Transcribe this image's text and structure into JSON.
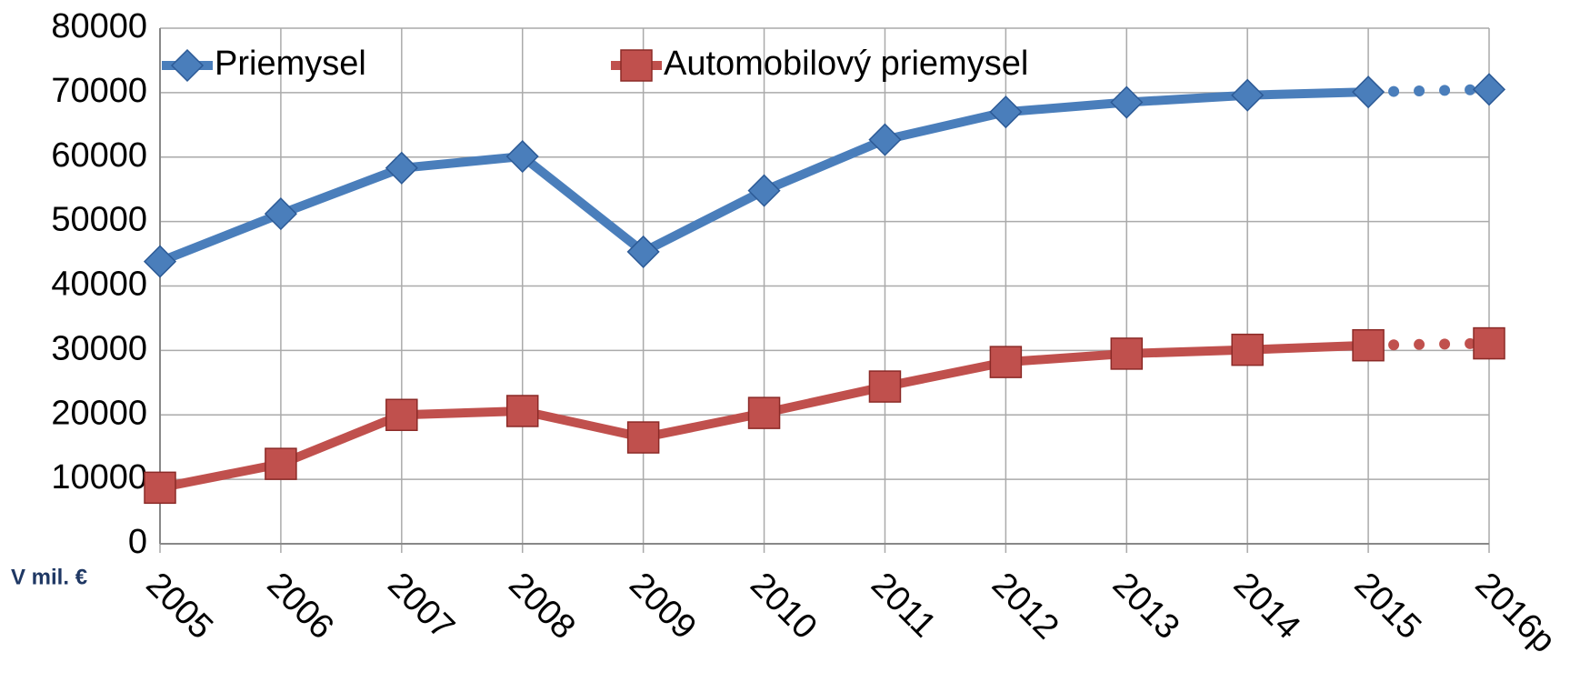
{
  "chart_data": {
    "type": "line",
    "categories": [
      "2005",
      "2006",
      "2007",
      "2008",
      "2009",
      "2010",
      "2011",
      "2012",
      "2013",
      "2014",
      "2015",
      "2016p"
    ],
    "series": [
      {
        "name": "Priemysel",
        "color": "#4a7ebb",
        "marker": "diamond",
        "values": [
          43800,
          51200,
          58300,
          60100,
          45300,
          54800,
          62700,
          67000,
          68500,
          69600,
          70100,
          70500
        ]
      },
      {
        "name": "Automobilový priemysel",
        "color": "#c0504d",
        "marker": "square",
        "values": [
          8700,
          12400,
          20000,
          20600,
          16500,
          20300,
          24400,
          28200,
          29500,
          30100,
          30800,
          31100
        ]
      }
    ],
    "dotted_from_index": 10,
    "annotation": "V mil. €",
    "ylim": [
      0,
      80000
    ],
    "yticks": [
      0,
      10000,
      20000,
      30000,
      40000,
      50000,
      60000,
      70000,
      80000
    ],
    "grid": true,
    "legend": "top"
  }
}
